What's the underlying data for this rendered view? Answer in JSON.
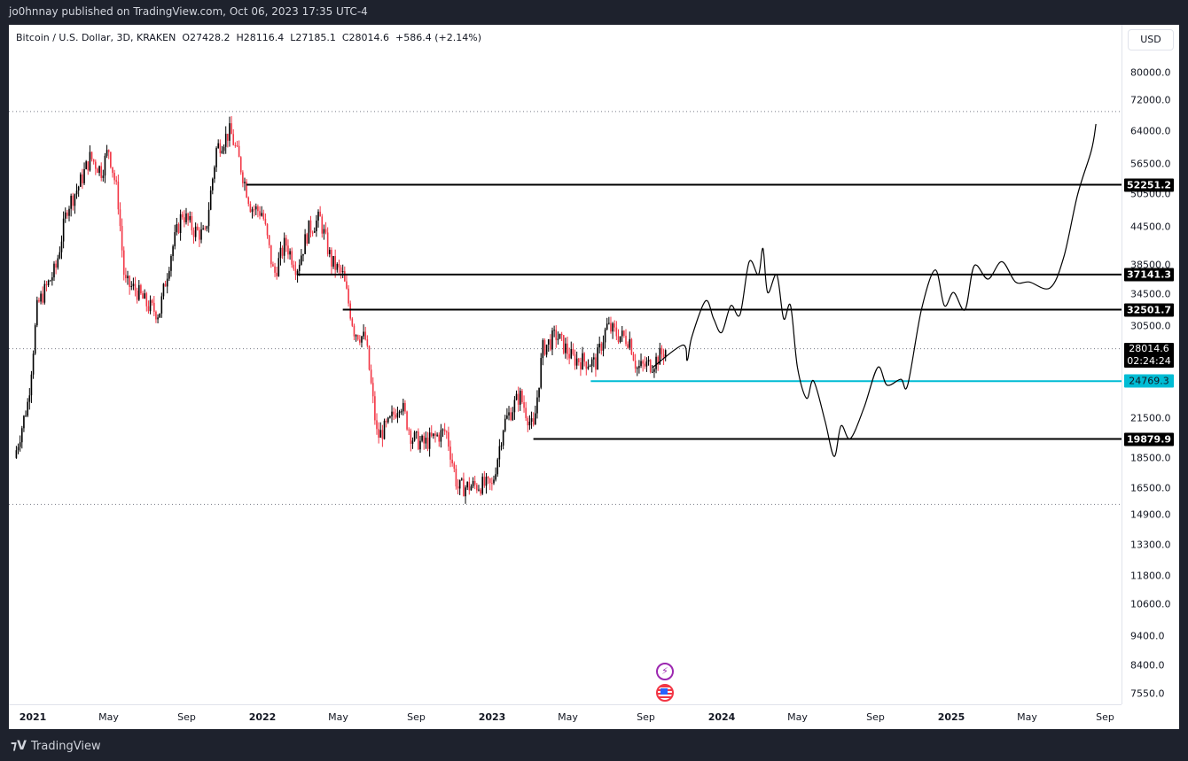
{
  "header": {
    "published": "jo0hnnay published on TradingView.com, Oct 06, 2023 17:35 UTC-4"
  },
  "legend": {
    "symbol": "Bitcoin / U.S. Dollar, 3D, KRAKEN",
    "open": "O27428.2",
    "high": "H28116.4",
    "low": "L27185.1",
    "close": "C28014.6",
    "change": "+586.4 (+2.14%)"
  },
  "price_axis": {
    "currency": "USD",
    "ticks": [
      "80000.0",
      "72000.0",
      "64000.0",
      "56500.0",
      "50500.0",
      "44500.0",
      "38500.0",
      "34500.0",
      "30500.0",
      "21500.0",
      "18500.0",
      "16500.0",
      "14900.0",
      "13300.0",
      "11800.0",
      "10600.0",
      "9400.0",
      "8400.0",
      "7550.0"
    ],
    "levels": [
      {
        "label": "52251.2",
        "color": "#000000"
      },
      {
        "label": "37141.3",
        "color": "#000000"
      },
      {
        "label": "32501.7",
        "color": "#000000"
      },
      {
        "label": "24769.3",
        "color": "#00bcd4"
      },
      {
        "label": "19879.9",
        "color": "#000000"
      }
    ],
    "current": {
      "price": "28014.6",
      "countdown": "02:24:24"
    }
  },
  "time_axis": {
    "ticks": [
      "2021",
      "May",
      "Sep",
      "2022",
      "May",
      "Sep",
      "2023",
      "May",
      "Sep",
      "2024",
      "May",
      "Sep",
      "2025",
      "May",
      "Sep"
    ]
  },
  "events": [
    {
      "icon": "lightning-icon",
      "color": "#9c27b0"
    },
    {
      "icon": "us-flag-icon",
      "color": "#f23645"
    }
  ],
  "footer": {
    "brand": "TradingView"
  },
  "chart_data": {
    "type": "candlestick",
    "scale": "log",
    "interval": "3D",
    "up_color": "#000000",
    "down_color": "#f23645",
    "ylim": [
      7200,
      90000
    ],
    "xlim": [
      "2020-12",
      "2025-10"
    ],
    "price_path": [
      [
        2020.92,
        18500
      ],
      [
        2020.98,
        23000
      ],
      [
        2021.02,
        33000
      ],
      [
        2021.1,
        38000
      ],
      [
        2021.15,
        48000
      ],
      [
        2021.2,
        52000
      ],
      [
        2021.25,
        58000
      ],
      [
        2021.3,
        55000
      ],
      [
        2021.33,
        60000
      ],
      [
        2021.37,
        50000
      ],
      [
        2021.4,
        36000
      ],
      [
        2021.45,
        35000
      ],
      [
        2021.5,
        33000
      ],
      [
        2021.55,
        32000
      ],
      [
        2021.6,
        40000
      ],
      [
        2021.65,
        47000
      ],
      [
        2021.7,
        44000
      ],
      [
        2021.75,
        43000
      ],
      [
        2021.8,
        60000
      ],
      [
        2021.86,
        64000
      ],
      [
        2021.9,
        57000
      ],
      [
        2021.95,
        48000
      ],
      [
        2022.0,
        47000
      ],
      [
        2022.05,
        37000
      ],
      [
        2022.1,
        42000
      ],
      [
        2022.15,
        38000
      ],
      [
        2022.2,
        44000
      ],
      [
        2022.25,
        46000
      ],
      [
        2022.3,
        39000
      ],
      [
        2022.35,
        37000
      ],
      [
        2022.4,
        30000
      ],
      [
        2022.45,
        29000
      ],
      [
        2022.5,
        20000
      ],
      [
        2022.55,
        21000
      ],
      [
        2022.6,
        23000
      ],
      [
        2022.65,
        20000
      ],
      [
        2022.7,
        19500
      ],
      [
        2022.8,
        20500
      ],
      [
        2022.85,
        16500
      ],
      [
        2022.95,
        16700
      ],
      [
        2023.0,
        16600
      ],
      [
        2023.05,
        21000
      ],
      [
        2023.12,
        23500
      ],
      [
        2023.18,
        20500
      ],
      [
        2023.22,
        28000
      ],
      [
        2023.28,
        29500
      ],
      [
        2023.35,
        27000
      ],
      [
        2023.45,
        26500
      ],
      [
        2023.5,
        30500
      ],
      [
        2023.55,
        29500
      ],
      [
        2023.6,
        29000
      ],
      [
        2023.63,
        26000
      ],
      [
        2023.7,
        26500
      ],
      [
        2023.76,
        28014.6
      ]
    ],
    "projection": [
      [
        2023.7,
        26100
      ],
      [
        2023.83,
        28400
      ],
      [
        2023.85,
        26800
      ],
      [
        2023.87,
        29300
      ],
      [
        2023.93,
        33600
      ],
      [
        2023.965,
        31400
      ],
      [
        2024.0,
        29800
      ],
      [
        2024.04,
        33000
      ],
      [
        2024.08,
        31900
      ],
      [
        2024.12,
        39000
      ],
      [
        2024.16,
        37100
      ],
      [
        2024.18,
        41000
      ],
      [
        2024.2,
        34700
      ],
      [
        2024.24,
        37100
      ],
      [
        2024.27,
        31400
      ],
      [
        2024.3,
        33000
      ],
      [
        2024.33,
        26100
      ],
      [
        2024.37,
        23200
      ],
      [
        2024.4,
        24800
      ],
      [
        2024.45,
        21300
      ],
      [
        2024.49,
        18600
      ],
      [
        2024.52,
        20900
      ],
      [
        2024.56,
        19900
      ],
      [
        2024.62,
        22400
      ],
      [
        2024.68,
        26100
      ],
      [
        2024.72,
        24400
      ],
      [
        2024.78,
        24950
      ],
      [
        2024.81,
        24400
      ],
      [
        2024.87,
        32500
      ],
      [
        2024.93,
        37800
      ],
      [
        2024.97,
        33000
      ],
      [
        2025.01,
        34700
      ],
      [
        2025.06,
        32500
      ],
      [
        2025.1,
        38400
      ],
      [
        2025.16,
        36500
      ],
      [
        2025.22,
        39000
      ],
      [
        2025.28,
        36100
      ],
      [
        2025.34,
        36100
      ],
      [
        2025.43,
        35300
      ],
      [
        2025.49,
        39700
      ],
      [
        2025.55,
        50300
      ],
      [
        2025.61,
        59500
      ],
      [
        2025.63,
        65800
      ]
    ],
    "horizontal_levels": [
      {
        "price": 52251.2,
        "from": 2021.93,
        "color": "#000000"
      },
      {
        "price": 37141.3,
        "from": 2022.15,
        "color": "#000000"
      },
      {
        "price": 32501.7,
        "from": 2022.35,
        "color": "#000000"
      },
      {
        "price": 24769.3,
        "from": 2023.43,
        "color": "#00bcd4"
      },
      {
        "price": 19879.9,
        "from": 2023.18,
        "color": "#000000"
      }
    ],
    "dotted_levels": [
      69000,
      28014.6,
      15500
    ]
  }
}
